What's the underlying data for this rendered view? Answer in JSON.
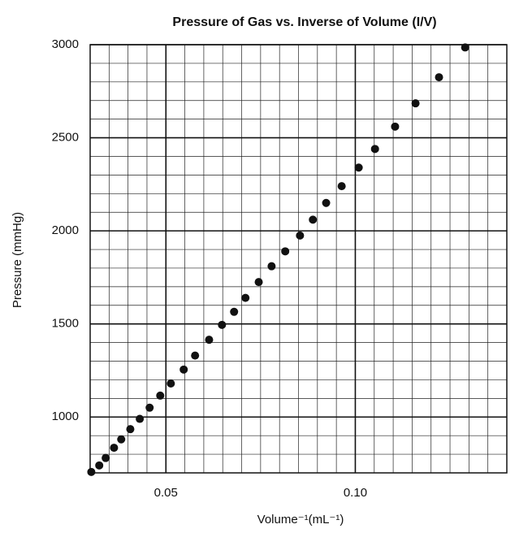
{
  "chart_data": {
    "type": "scatter",
    "title": "Pressure of Gas vs. Inverse of Volume (I/V)",
    "xlabel": "Volume⁻¹(mL⁻¹)",
    "ylabel": "Pressure (mmHg)",
    "x": [
      0.0303,
      0.0324,
      0.0341,
      0.0363,
      0.0382,
      0.0406,
      0.0431,
      0.0457,
      0.0485,
      0.0513,
      0.0547,
      0.0577,
      0.0614,
      0.0648,
      0.068,
      0.071,
      0.0745,
      0.0779,
      0.0815,
      0.0854,
      0.0888,
      0.0923,
      0.0964,
      0.1009,
      0.1052,
      0.1105,
      0.1159,
      0.1221,
      0.129
    ],
    "values": [
      705,
      740,
      780,
      835,
      880,
      935,
      990,
      1050,
      1115,
      1180,
      1255,
      1330,
      1415,
      1495,
      1565,
      1640,
      1725,
      1810,
      1890,
      1975,
      2060,
      2150,
      2240,
      2340,
      2440,
      2560,
      2685,
      2825,
      2985
    ],
    "color": "#111111",
    "xlim": [
      0.03,
      0.14
    ],
    "ylim": [
      700,
      3000
    ],
    "xticks": [
      0.05,
      {
        "value": 0.1,
        "label": "0.10"
      }
    ],
    "yticks": [
      1000,
      1500,
      2000,
      2500,
      3000
    ],
    "grid": {
      "x_step": 0.005,
      "y_step": 100
    }
  }
}
